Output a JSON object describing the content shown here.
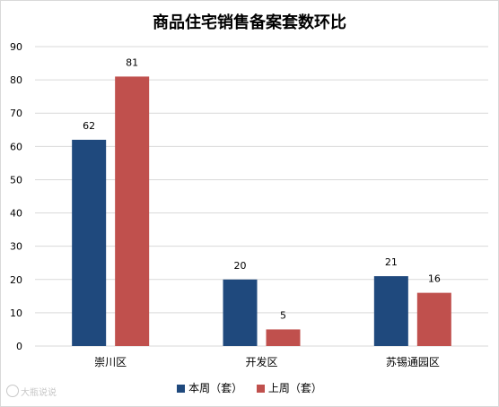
{
  "chart_data": {
    "type": "bar",
    "title": "商品住宅销售备案套数环比",
    "categories": [
      "崇川区",
      "开发区",
      "苏锡通园区"
    ],
    "series": [
      {
        "name": "本周（套）",
        "values": [
          62,
          20,
          21
        ],
        "color": "#1f497d"
      },
      {
        "name": "上周（套）",
        "values": [
          81,
          5,
          16
        ],
        "color": "#c0504d"
      }
    ],
    "ylim": [
      0,
      90
    ],
    "yticks": [
      0,
      10,
      20,
      30,
      40,
      50,
      60,
      70,
      80,
      90
    ],
    "xlabel": "",
    "ylabel": "",
    "grid": true,
    "legend": "bottom"
  },
  "watermark": "大瓶说说"
}
